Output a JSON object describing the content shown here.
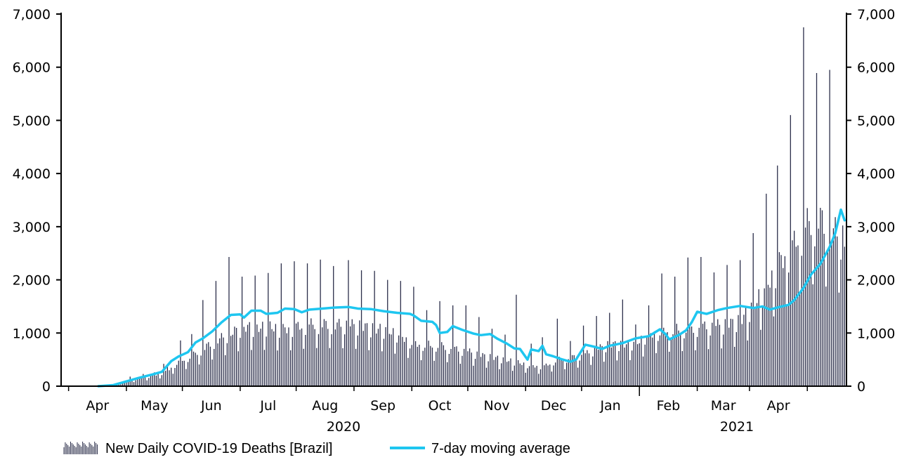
{
  "chart_data": {
    "type": "bar+line",
    "x_start": "2020-02-26",
    "x_end": "2021-04-22",
    "ylim": [
      0,
      7000
    ],
    "yticks": [
      0,
      1000,
      2000,
      3000,
      4000,
      5000,
      6000,
      7000
    ],
    "ytick_labels": [
      "0",
      "1,000",
      "2,000",
      "3,000",
      "4,000",
      "5,000",
      "6,000",
      "7,000"
    ],
    "month_labels": [
      "Apr",
      "May",
      "Jun",
      "Jul",
      "Aug",
      "Sep",
      "Oct",
      "Nov",
      "Dec",
      "Jan",
      "Feb",
      "Mar",
      "Apr"
    ],
    "year_labels": [
      "2020",
      "2021"
    ],
    "colors": {
      "bars": "#2b2e4a",
      "line": "#1ec6f0",
      "axis": "#000000"
    },
    "series": [
      {
        "name": "New Daily COVID-19 Deaths [Brazil]",
        "kind": "bar",
        "anchors": [
          [
            "2020-02-26",
            0
          ],
          [
            "2020-03-17",
            1
          ],
          [
            "2020-03-25",
            20
          ],
          [
            "2020-04-01",
            100
          ],
          [
            "2020-04-08",
            170
          ],
          [
            "2020-04-15",
            220
          ],
          [
            "2020-04-22",
            300
          ],
          [
            "2020-04-29",
            520
          ],
          [
            "2020-05-06",
            640
          ],
          [
            "2020-05-13",
            820
          ],
          [
            "2020-05-20",
            980
          ],
          [
            "2020-05-27",
            1120
          ],
          [
            "2020-06-03",
            1250
          ],
          [
            "2020-06-10",
            1230
          ],
          [
            "2020-06-17",
            1250
          ],
          [
            "2020-06-24",
            1200
          ],
          [
            "2020-07-01",
            1250
          ],
          [
            "2020-07-08",
            1300
          ],
          [
            "2020-07-15",
            1310
          ],
          [
            "2020-07-22",
            1300
          ],
          [
            "2020-07-29",
            1300
          ],
          [
            "2020-08-05",
            1260
          ],
          [
            "2020-08-12",
            1210
          ],
          [
            "2020-08-19",
            1180
          ],
          [
            "2020-08-26",
            1060
          ],
          [
            "2020-09-02",
            900
          ],
          [
            "2020-09-09",
            880
          ],
          [
            "2020-09-16",
            860
          ],
          [
            "2020-09-23",
            790
          ],
          [
            "2020-09-30",
            750
          ],
          [
            "2020-10-07",
            660
          ],
          [
            "2020-10-14",
            610
          ],
          [
            "2020-10-21",
            560
          ],
          [
            "2020-10-28",
            500
          ],
          [
            "2020-11-04",
            430
          ],
          [
            "2020-11-11",
            420
          ],
          [
            "2020-11-18",
            560
          ],
          [
            "2020-11-25",
            600
          ],
          [
            "2020-12-02",
            660
          ],
          [
            "2020-12-09",
            780
          ],
          [
            "2020-12-16",
            880
          ],
          [
            "2020-12-23",
            880
          ],
          [
            "2020-12-30",
            900
          ],
          [
            "2021-01-06",
            1100
          ],
          [
            "2021-01-13",
            1150
          ],
          [
            "2021-01-20",
            1200
          ],
          [
            "2021-01-27",
            1200
          ],
          [
            "2021-02-03",
            1250
          ],
          [
            "2021-02-10",
            1280
          ],
          [
            "2021-02-17",
            1300
          ],
          [
            "2021-02-24",
            1380
          ],
          [
            "2021-03-03",
            1700
          ],
          [
            "2021-03-10",
            2100
          ],
          [
            "2021-03-17",
            2600
          ],
          [
            "2021-03-24",
            2950
          ],
          [
            "2021-03-31",
            3400
          ],
          [
            "2021-04-07",
            3550
          ],
          [
            "2021-04-14",
            3300
          ],
          [
            "2021-04-22",
            3100
          ]
        ],
        "spikes": [
          [
            "2020-04-03",
            180
          ],
          [
            "2020-04-10",
            230
          ],
          [
            "2020-04-16",
            260
          ],
          [
            "2020-04-21",
            420
          ],
          [
            "2020-04-23",
            390
          ],
          [
            "2020-04-30",
            860
          ],
          [
            "2020-05-06",
            980
          ],
          [
            "2020-05-12",
            1620
          ],
          [
            "2020-05-19",
            1980
          ],
          [
            "2020-05-26",
            2430
          ],
          [
            "2020-06-02",
            2060
          ],
          [
            "2020-06-09",
            2080
          ],
          [
            "2020-06-16",
            2130
          ],
          [
            "2020-06-23",
            2310
          ],
          [
            "2020-06-30",
            2350
          ],
          [
            "2020-07-07",
            2310
          ],
          [
            "2020-07-14",
            2380
          ],
          [
            "2020-07-21",
            2260
          ],
          [
            "2020-07-29",
            2370
          ],
          [
            "2020-08-05",
            2180
          ],
          [
            "2020-08-12",
            2170
          ],
          [
            "2020-08-19",
            2000
          ],
          [
            "2020-08-26",
            1980
          ],
          [
            "2020-09-02",
            1870
          ],
          [
            "2020-09-09",
            1430
          ],
          [
            "2020-09-16",
            1600
          ],
          [
            "2020-09-23",
            1520
          ],
          [
            "2020-09-30",
            1520
          ],
          [
            "2020-10-07",
            1300
          ],
          [
            "2020-10-14",
            1080
          ],
          [
            "2020-10-21",
            970
          ],
          [
            "2020-10-27",
            1720
          ],
          [
            "2020-11-04",
            800
          ],
          [
            "2020-11-10",
            920
          ],
          [
            "2020-11-18",
            1270
          ],
          [
            "2020-11-25",
            850
          ],
          [
            "2020-12-02",
            1140
          ],
          [
            "2020-12-09",
            1320
          ],
          [
            "2020-12-16",
            1380
          ],
          [
            "2020-12-23",
            1630
          ],
          [
            "2020-12-30",
            1160
          ],
          [
            "2021-01-06",
            1520
          ],
          [
            "2021-01-13",
            2120
          ],
          [
            "2021-01-20",
            2060
          ],
          [
            "2021-01-27",
            2420
          ],
          [
            "2021-02-03",
            2430
          ],
          [
            "2021-02-10",
            2140
          ],
          [
            "2021-02-17",
            2280
          ],
          [
            "2021-02-24",
            2370
          ],
          [
            "2021-03-03",
            2880
          ],
          [
            "2021-03-10",
            3620
          ],
          [
            "2021-03-16",
            4150
          ],
          [
            "2021-03-23",
            5100
          ],
          [
            "2021-03-30",
            6750
          ],
          [
            "2021-04-06",
            5890
          ],
          [
            "2021-04-13",
            5950
          ]
        ]
      },
      {
        "name": "7-day moving average",
        "kind": "line",
        "points": [
          [
            "2020-03-17",
            0
          ],
          [
            "2020-03-25",
            20
          ],
          [
            "2020-04-01",
            90
          ],
          [
            "2020-04-08",
            160
          ],
          [
            "2020-04-15",
            220
          ],
          [
            "2020-04-20",
            270
          ],
          [
            "2020-04-25",
            470
          ],
          [
            "2020-04-29",
            560
          ],
          [
            "2020-05-04",
            640
          ],
          [
            "2020-05-08",
            820
          ],
          [
            "2020-05-12",
            900
          ],
          [
            "2020-05-17",
            1030
          ],
          [
            "2020-05-22",
            1200
          ],
          [
            "2020-05-27",
            1340
          ],
          [
            "2020-06-01",
            1350
          ],
          [
            "2020-06-03",
            1290
          ],
          [
            "2020-06-07",
            1420
          ],
          [
            "2020-06-12",
            1420
          ],
          [
            "2020-06-15",
            1360
          ],
          [
            "2020-06-21",
            1380
          ],
          [
            "2020-06-25",
            1460
          ],
          [
            "2020-06-30",
            1450
          ],
          [
            "2020-07-04",
            1390
          ],
          [
            "2020-07-08",
            1440
          ],
          [
            "2020-07-15",
            1460
          ],
          [
            "2020-07-22",
            1480
          ],
          [
            "2020-07-29",
            1490
          ],
          [
            "2020-08-03",
            1460
          ],
          [
            "2020-08-10",
            1450
          ],
          [
            "2020-08-17",
            1410
          ],
          [
            "2020-08-24",
            1380
          ],
          [
            "2020-08-31",
            1360
          ],
          [
            "2020-09-02",
            1330
          ],
          [
            "2020-09-06",
            1230
          ],
          [
            "2020-09-12",
            1210
          ],
          [
            "2020-09-14",
            1150
          ],
          [
            "2020-09-16",
            1000
          ],
          [
            "2020-09-20",
            1020
          ],
          [
            "2020-09-23",
            1130
          ],
          [
            "2020-09-28",
            1060
          ],
          [
            "2020-10-04",
            990
          ],
          [
            "2020-10-08",
            960
          ],
          [
            "2020-10-13",
            980
          ],
          [
            "2020-10-17",
            890
          ],
          [
            "2020-10-22",
            800
          ],
          [
            "2020-10-26",
            710
          ],
          [
            "2020-10-29",
            700
          ],
          [
            "2020-11-02",
            500
          ],
          [
            "2020-11-04",
            690
          ],
          [
            "2020-11-08",
            660
          ],
          [
            "2020-11-10",
            760
          ],
          [
            "2020-11-12",
            600
          ],
          [
            "2020-11-16",
            560
          ],
          [
            "2020-11-20",
            510
          ],
          [
            "2020-11-25",
            460
          ],
          [
            "2020-11-28",
            500
          ],
          [
            "2020-12-03",
            780
          ],
          [
            "2020-12-08",
            740
          ],
          [
            "2020-12-12",
            700
          ],
          [
            "2020-12-16",
            760
          ],
          [
            "2020-12-23",
            810
          ],
          [
            "2020-12-30",
            900
          ],
          [
            "2021-01-06",
            940
          ],
          [
            "2021-01-12",
            1070
          ],
          [
            "2021-01-15",
            980
          ],
          [
            "2021-01-17",
            880
          ],
          [
            "2021-01-22",
            960
          ],
          [
            "2021-01-26",
            1050
          ],
          [
            "2021-01-29",
            1200
          ],
          [
            "2021-02-01",
            1400
          ],
          [
            "2021-02-06",
            1360
          ],
          [
            "2021-02-12",
            1430
          ],
          [
            "2021-02-17",
            1470
          ],
          [
            "2021-02-24",
            1510
          ],
          [
            "2021-03-03",
            1470
          ],
          [
            "2021-03-08",
            1500
          ],
          [
            "2021-03-12",
            1440
          ],
          [
            "2021-03-17",
            1490
          ],
          [
            "2021-03-22",
            1530
          ],
          [
            "2021-03-25",
            1620
          ],
          [
            "2021-03-30",
            1850
          ],
          [
            "2021-04-03",
            2100
          ],
          [
            "2021-04-08",
            2300
          ],
          [
            "2021-04-13",
            2620
          ],
          [
            "2021-04-16",
            2880
          ],
          [
            "2021-04-19",
            3320
          ],
          [
            "2021-04-21",
            3120
          ]
        ]
      }
    ],
    "legend": [
      {
        "label": "New Daily COVID-19 Deaths [Brazil]",
        "kind": "bar"
      },
      {
        "label": "7-day moving average",
        "kind": "line"
      }
    ],
    "legend_position": "bottom"
  }
}
